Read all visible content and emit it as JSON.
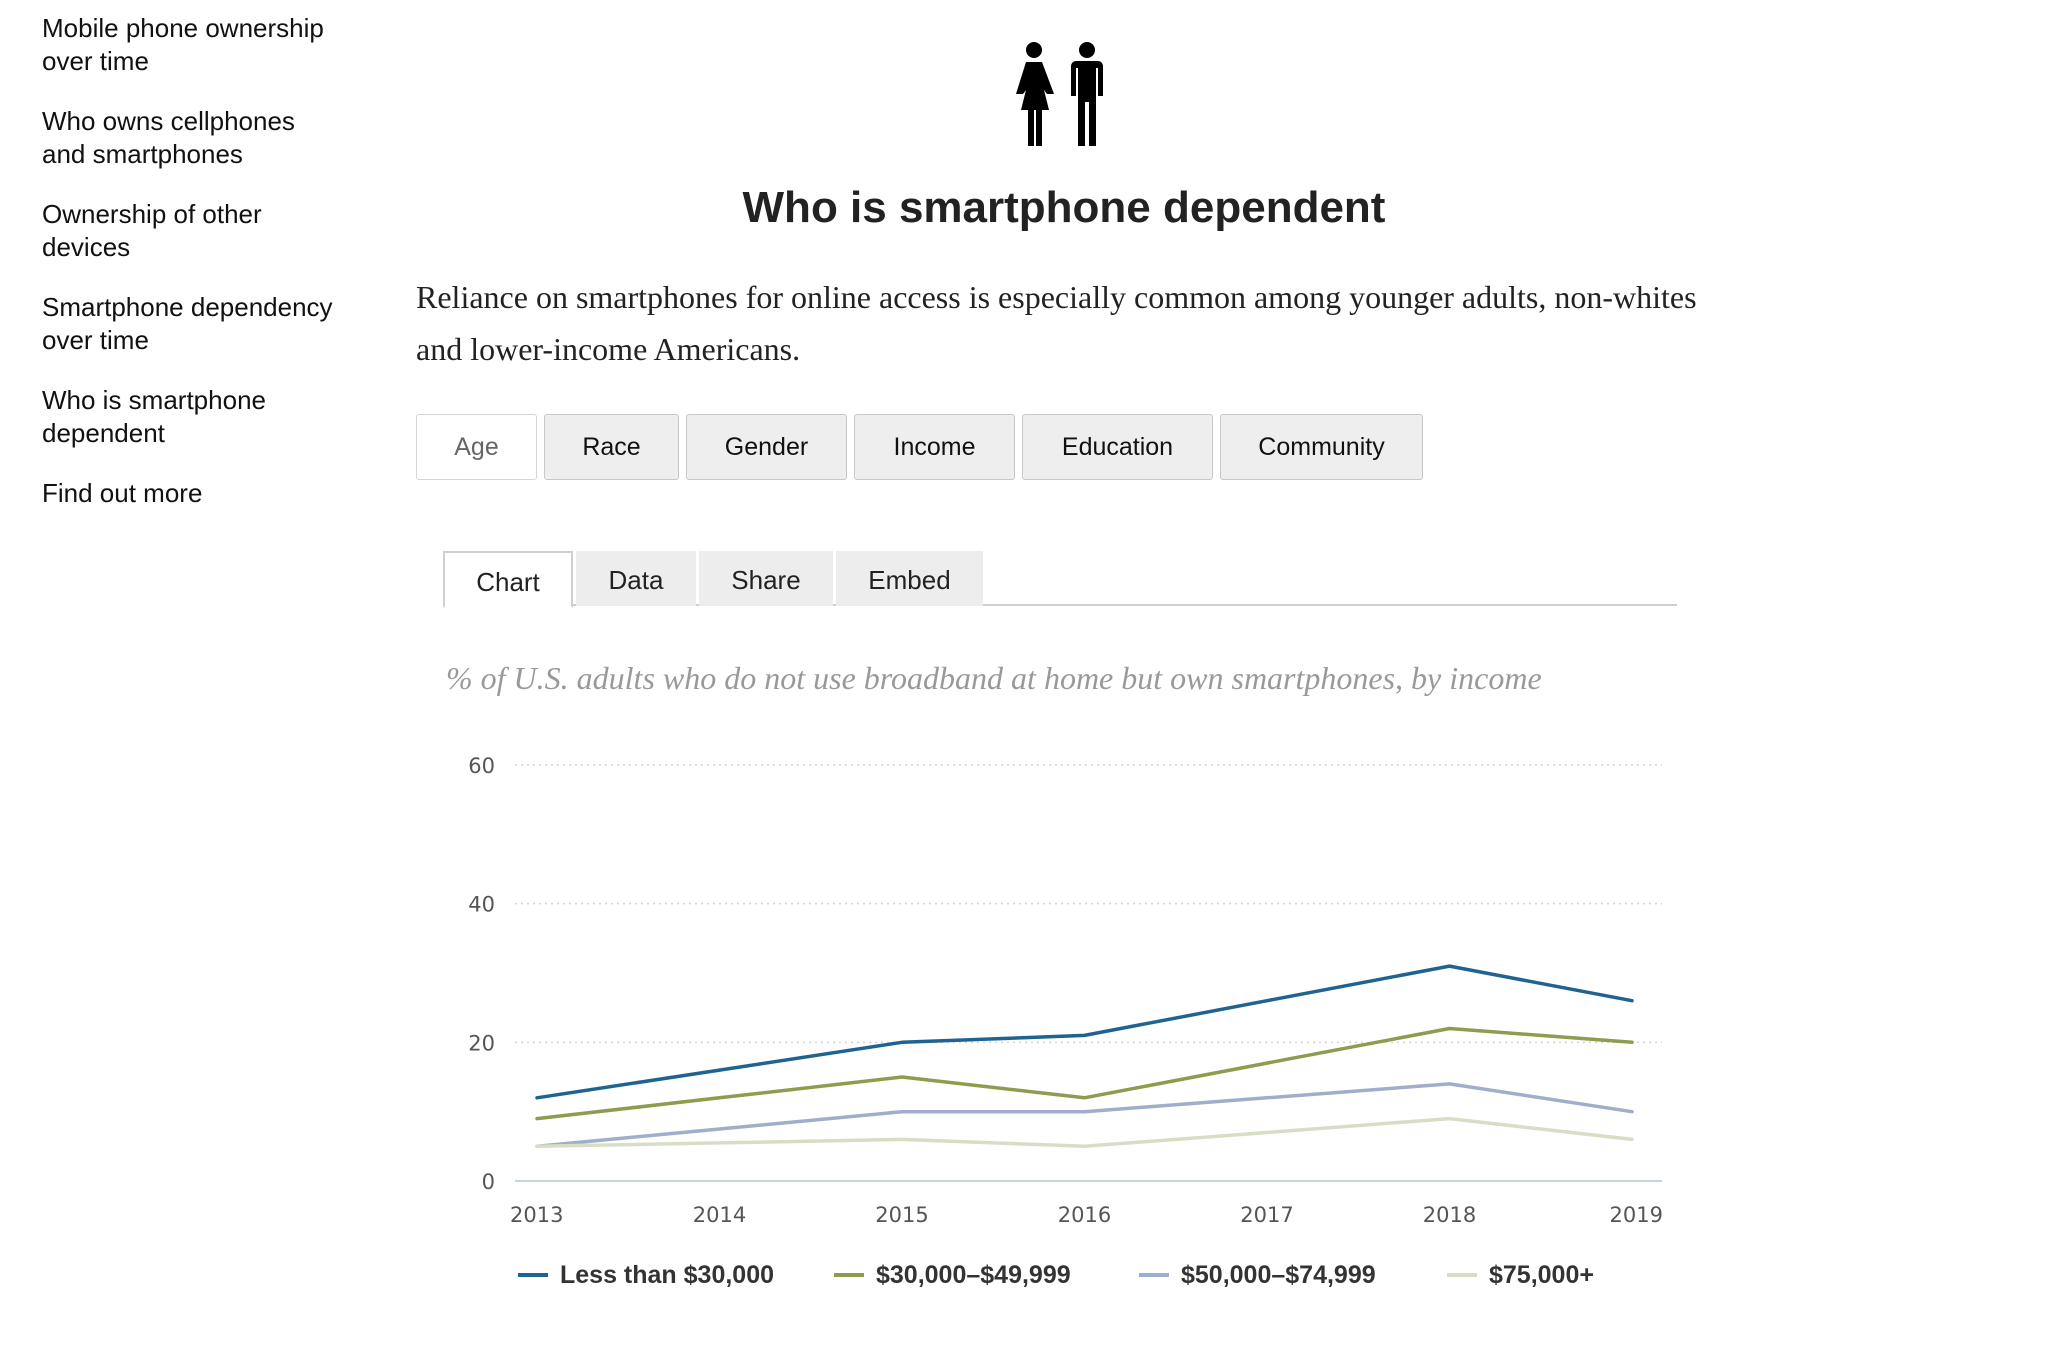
{
  "sidebar": {
    "items": [
      {
        "label": "Mobile phone ownership over time"
      },
      {
        "label": "Who owns cellphones and smartphones"
      },
      {
        "label": "Ownership of other devices"
      },
      {
        "label": "Smartphone dependency over time"
      },
      {
        "label": "Who is smartphone dependent"
      },
      {
        "label": "Find out more"
      }
    ]
  },
  "header": {
    "icon": "people-icon",
    "title": "Who is smartphone dependent",
    "subtitle": "Reliance on smartphones for online access is especially common among younger adults, non-whites and lower-income Americans."
  },
  "categories": {
    "selected": "Age",
    "items": [
      {
        "label": "Age"
      },
      {
        "label": "Race"
      },
      {
        "label": "Gender"
      },
      {
        "label": "Income"
      },
      {
        "label": "Education"
      },
      {
        "label": "Community"
      }
    ]
  },
  "tabs": {
    "selected": "Chart",
    "items": [
      {
        "label": "Chart"
      },
      {
        "label": "Data"
      },
      {
        "label": "Share"
      },
      {
        "label": "Embed"
      }
    ]
  },
  "chart_data": {
    "type": "line",
    "title": "% of U.S. adults who do not use broadband at home but own smartphones, by income",
    "xlabel": "",
    "ylabel": "",
    "x": [
      2013,
      2014,
      2015,
      2016,
      2017,
      2018,
      2019
    ],
    "x_tick_labels": [
      "2013",
      "2014",
      "2015",
      "2016",
      "2017",
      "2018",
      "2019"
    ],
    "ylim": [
      0,
      60
    ],
    "y_ticks": [
      0,
      20,
      40,
      60
    ],
    "y_tick_labels": [
      "0",
      "20",
      "40",
      "60"
    ],
    "grid": "horizontal dotted",
    "legend_position": "bottom",
    "series": [
      {
        "name": "Less than $30,000",
        "color": "#1f6391",
        "values": [
          12,
          16,
          20,
          21,
          26,
          31,
          26
        ]
      },
      {
        "name": "$30,000–$49,999",
        "color": "#8c9d4d",
        "values": [
          9,
          12,
          15,
          12,
          17,
          22,
          20
        ]
      },
      {
        "name": "$50,000–$74,999",
        "color": "#9faecb",
        "values": [
          5,
          7.5,
          10,
          10,
          12,
          14,
          10
        ]
      },
      {
        "name": "$75,000+",
        "color": "#d6dfc3",
        "values": [
          5,
          5.5,
          6,
          5,
          7,
          9,
          6
        ]
      }
    ]
  }
}
